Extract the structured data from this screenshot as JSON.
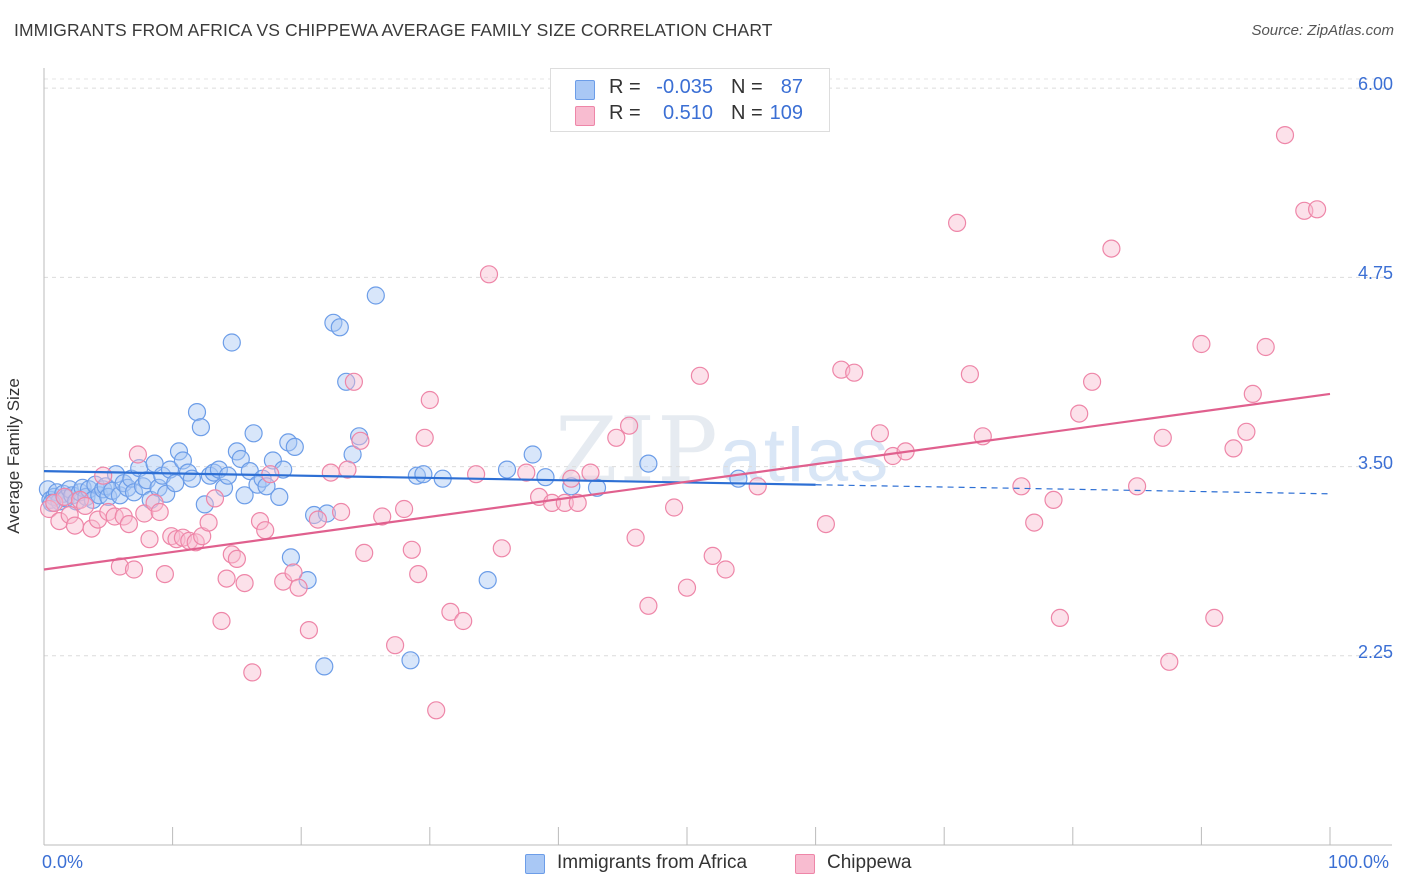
{
  "title": "IMMIGRANTS FROM AFRICA VS CHIPPEWA AVERAGE FAMILY SIZE CORRELATION CHART",
  "source": "Source: ZipAtlas.com",
  "legend": {
    "rows": [
      {
        "r_label": "R =",
        "r_value": "-0.035",
        "n_label": "N =",
        "n_value": "87",
        "color": "#a9c8f5",
        "border": "#6c9de8"
      },
      {
        "r_label": "R =",
        "r_value": "0.510",
        "n_label": "N =",
        "n_value": "109",
        "color": "#f8bcd0",
        "border": "#ee86a8"
      }
    ]
  },
  "watermark": {
    "zip": "ZIP",
    "atlas": "atlas"
  },
  "chart_data": {
    "type": "scatter",
    "ylabel": "Average Family Size",
    "xlabel": "",
    "x_tick_labels": {
      "min": "0.0%",
      "max": "100.0%"
    },
    "y_ticks": [
      {
        "value": 2.25,
        "label": "2.25"
      },
      {
        "value": 3.5,
        "label": "3.50"
      },
      {
        "value": 4.75,
        "label": "4.75"
      },
      {
        "value": 6.0,
        "label": "6.00"
      }
    ],
    "xlim": [
      0,
      100
    ],
    "ylim": [
      1.0,
      6.12
    ],
    "grid": "horizontal dashed",
    "legend_position": "top-center",
    "series": [
      {
        "name": "Immigrants from Africa",
        "color": "#6c9de8",
        "fill": "rgba(169,200,245,0.45)",
        "trend": {
          "x0": 0,
          "y0": 3.47,
          "x1": 60,
          "y1": 3.38,
          "dash_x1": 100,
          "dash_y1": 3.32,
          "color": "#2d6fd4"
        },
        "points": [
          [
            0.3,
            3.35
          ],
          [
            0.5,
            3.28
          ],
          [
            0.8,
            3.3
          ],
          [
            1.0,
            3.33
          ],
          [
            1.2,
            3.27
          ],
          [
            1.5,
            3.32
          ],
          [
            1.7,
            3.29
          ],
          [
            2.0,
            3.35
          ],
          [
            2.2,
            3.31
          ],
          [
            2.5,
            3.27
          ],
          [
            2.8,
            3.33
          ],
          [
            3.0,
            3.36
          ],
          [
            3.3,
            3.3
          ],
          [
            3.5,
            3.35
          ],
          [
            3.8,
            3.28
          ],
          [
            4.0,
            3.38
          ],
          [
            4.3,
            3.31
          ],
          [
            4.6,
            3.35
          ],
          [
            4.8,
            3.37
          ],
          [
            5.0,
            3.3
          ],
          [
            5.3,
            3.34
          ],
          [
            5.6,
            3.45
          ],
          [
            5.9,
            3.31
          ],
          [
            6.2,
            3.39
          ],
          [
            6.5,
            3.36
          ],
          [
            6.8,
            3.42
          ],
          [
            7.0,
            3.33
          ],
          [
            7.4,
            3.49
          ],
          [
            7.7,
            3.37
          ],
          [
            8.0,
            3.41
          ],
          [
            8.3,
            3.28
          ],
          [
            8.6,
            3.52
          ],
          [
            8.9,
            3.36
          ],
          [
            9.2,
            3.44
          ],
          [
            9.5,
            3.32
          ],
          [
            9.8,
            3.48
          ],
          [
            10.2,
            3.39
          ],
          [
            10.5,
            3.6
          ],
          [
            10.8,
            3.54
          ],
          [
            11.2,
            3.46
          ],
          [
            11.5,
            3.42
          ],
          [
            11.9,
            3.86
          ],
          [
            12.2,
            3.76
          ],
          [
            12.5,
            3.25
          ],
          [
            12.9,
            3.44
          ],
          [
            13.2,
            3.46
          ],
          [
            13.6,
            3.48
          ],
          [
            14.0,
            3.36
          ],
          [
            14.3,
            3.44
          ],
          [
            14.6,
            4.32
          ],
          [
            15.0,
            3.6
          ],
          [
            15.3,
            3.55
          ],
          [
            15.6,
            3.31
          ],
          [
            16.0,
            3.47
          ],
          [
            16.3,
            3.72
          ],
          [
            16.6,
            3.38
          ],
          [
            17.0,
            3.42
          ],
          [
            17.3,
            3.37
          ],
          [
            17.8,
            3.54
          ],
          [
            18.3,
            3.3
          ],
          [
            18.6,
            3.48
          ],
          [
            19.0,
            3.66
          ],
          [
            19.5,
            3.63
          ],
          [
            19.2,
            2.9
          ],
          [
            20.5,
            2.75
          ],
          [
            21.0,
            3.18
          ],
          [
            21.8,
            2.18
          ],
          [
            22.0,
            3.19
          ],
          [
            22.5,
            4.45
          ],
          [
            23.0,
            4.42
          ],
          [
            23.5,
            4.06
          ],
          [
            24.0,
            3.58
          ],
          [
            24.5,
            3.7
          ],
          [
            25.8,
            4.63
          ],
          [
            28.5,
            2.22
          ],
          [
            29.0,
            3.44
          ],
          [
            29.5,
            3.45
          ],
          [
            31.0,
            3.42
          ],
          [
            34.5,
            2.75
          ],
          [
            36.0,
            3.48
          ],
          [
            38.0,
            3.58
          ],
          [
            39.0,
            3.43
          ],
          [
            41.0,
            3.37
          ],
          [
            43.0,
            3.36
          ],
          [
            47.0,
            3.52
          ],
          [
            54.0,
            3.42
          ],
          [
            0.6,
            3.26
          ]
        ]
      },
      {
        "name": "Chippewa",
        "color": "#ee86a8",
        "fill": "rgba(248,188,208,0.45)",
        "trend": {
          "x0": 0,
          "y0": 2.82,
          "x1": 100,
          "y1": 3.98,
          "color": "#e0608e"
        },
        "points": [
          [
            0.4,
            3.22
          ],
          [
            0.8,
            3.26
          ],
          [
            1.2,
            3.14
          ],
          [
            1.6,
            3.3
          ],
          [
            2.0,
            3.18
          ],
          [
            2.4,
            3.11
          ],
          [
            2.8,
            3.28
          ],
          [
            3.2,
            3.24
          ],
          [
            3.7,
            3.09
          ],
          [
            4.2,
            3.15
          ],
          [
            4.6,
            3.44
          ],
          [
            5.0,
            3.2
          ],
          [
            5.5,
            3.17
          ],
          [
            5.9,
            2.84
          ],
          [
            6.2,
            3.17
          ],
          [
            6.6,
            3.12
          ],
          [
            7.0,
            2.82
          ],
          [
            7.3,
            3.58
          ],
          [
            7.8,
            3.19
          ],
          [
            8.2,
            3.02
          ],
          [
            8.6,
            3.26
          ],
          [
            9.0,
            3.2
          ],
          [
            9.4,
            2.79
          ],
          [
            9.9,
            3.04
          ],
          [
            10.3,
            3.02
          ],
          [
            10.8,
            3.03
          ],
          [
            11.3,
            3.01
          ],
          [
            11.8,
            3.0
          ],
          [
            12.3,
            3.04
          ],
          [
            12.8,
            3.13
          ],
          [
            13.3,
            3.29
          ],
          [
            13.8,
            2.48
          ],
          [
            14.2,
            2.76
          ],
          [
            14.6,
            2.92
          ],
          [
            15.0,
            2.89
          ],
          [
            15.6,
            2.73
          ],
          [
            16.2,
            2.14
          ],
          [
            16.8,
            3.14
          ],
          [
            17.2,
            3.08
          ],
          [
            17.6,
            3.45
          ],
          [
            18.6,
            2.74
          ],
          [
            19.4,
            2.8
          ],
          [
            19.8,
            2.7
          ],
          [
            20.6,
            2.42
          ],
          [
            21.3,
            3.15
          ],
          [
            22.3,
            3.46
          ],
          [
            23.1,
            3.2
          ],
          [
            23.6,
            3.48
          ],
          [
            24.1,
            4.06
          ],
          [
            24.6,
            3.67
          ],
          [
            24.9,
            2.93
          ],
          [
            26.3,
            3.17
          ],
          [
            27.3,
            2.32
          ],
          [
            28.0,
            3.22
          ],
          [
            28.6,
            2.95
          ],
          [
            29.1,
            2.79
          ],
          [
            29.6,
            3.69
          ],
          [
            30.0,
            3.94
          ],
          [
            30.5,
            1.89
          ],
          [
            31.6,
            2.54
          ],
          [
            32.6,
            2.48
          ],
          [
            33.6,
            3.45
          ],
          [
            34.6,
            4.77
          ],
          [
            35.6,
            2.96
          ],
          [
            37.5,
            3.46
          ],
          [
            38.5,
            3.3
          ],
          [
            39.5,
            3.26
          ],
          [
            40.5,
            3.26
          ],
          [
            41.0,
            3.42
          ],
          [
            41.5,
            3.26
          ],
          [
            42.5,
            3.46
          ],
          [
            44.5,
            3.69
          ],
          [
            45.5,
            3.77
          ],
          [
            46.0,
            3.03
          ],
          [
            47.0,
            2.58
          ],
          [
            49.0,
            3.23
          ],
          [
            50.0,
            2.7
          ],
          [
            51.0,
            4.1
          ],
          [
            52.0,
            2.91
          ],
          [
            53.0,
            2.82
          ],
          [
            55.5,
            3.37
          ],
          [
            60.8,
            3.12
          ],
          [
            62.0,
            4.14
          ],
          [
            63.0,
            4.12
          ],
          [
            65.0,
            3.72
          ],
          [
            66.0,
            3.57
          ],
          [
            67.0,
            3.6
          ],
          [
            71.0,
            5.11
          ],
          [
            72.0,
            4.11
          ],
          [
            73.0,
            3.7
          ],
          [
            76.0,
            3.37
          ],
          [
            77.0,
            3.13
          ],
          [
            78.5,
            3.28
          ],
          [
            79.0,
            2.5
          ],
          [
            80.5,
            3.85
          ],
          [
            81.5,
            4.06
          ],
          [
            83.0,
            4.94
          ],
          [
            85.0,
            3.37
          ],
          [
            87.0,
            3.69
          ],
          [
            87.5,
            2.21
          ],
          [
            90.0,
            4.31
          ],
          [
            91.0,
            2.5
          ],
          [
            92.5,
            3.62
          ],
          [
            93.5,
            3.73
          ],
          [
            95.0,
            4.29
          ],
          [
            96.5,
            5.69
          ],
          [
            98.0,
            5.19
          ],
          [
            99.0,
            5.2
          ],
          [
            94.0,
            3.98
          ]
        ]
      }
    ]
  }
}
